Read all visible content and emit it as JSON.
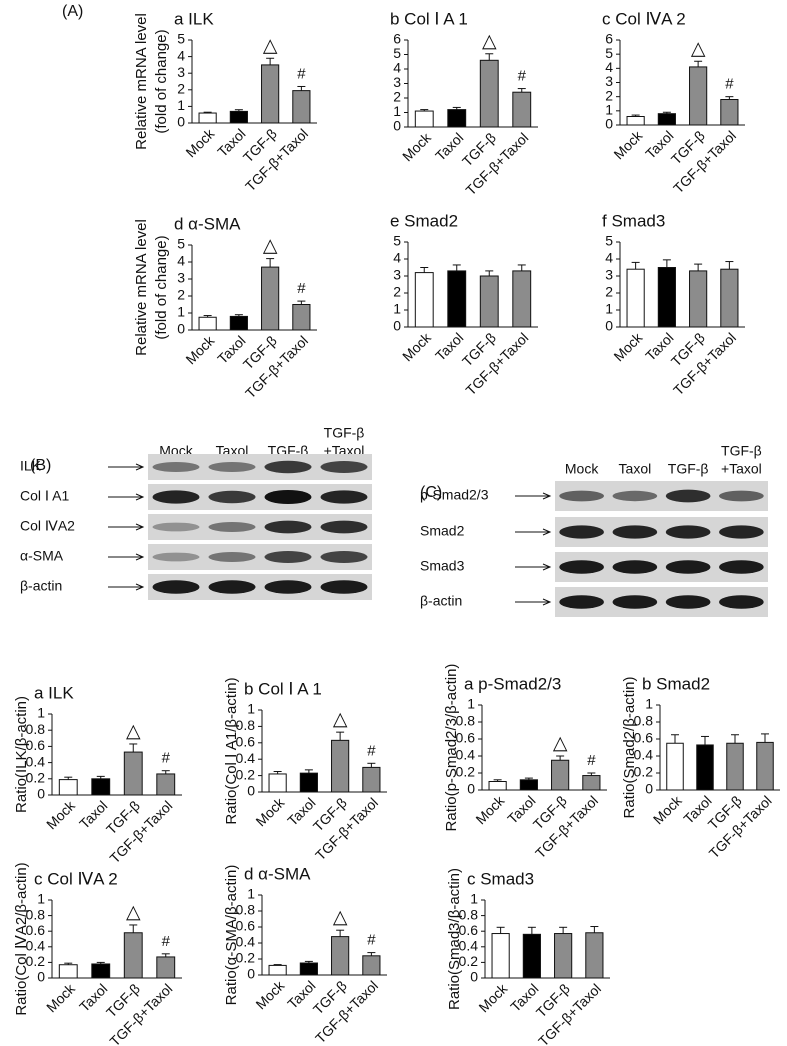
{
  "panels": {
    "A": "(A)",
    "B": "(B)",
    "C": "(C)"
  },
  "blots": [
    {
      "columns": [
        [
          "Mock"
        ],
        [
          "Taxol"
        ],
        [
          "TGF-β"
        ],
        [
          "TGF-β",
          "+Taxol"
        ]
      ],
      "rows": [
        "ILK",
        "Col Ⅰ A1",
        "Col ⅣA2",
        "α-SMA",
        "β-actin"
      ]
    },
    {
      "columns": [
        [
          "Mock"
        ],
        [
          "Taxol"
        ],
        [
          "TGF-β"
        ],
        [
          "TGF-β",
          "+Taxol"
        ]
      ],
      "rows": [
        "p-Smad2/3",
        "Smad2",
        "Smad3",
        "β-actin"
      ]
    }
  ],
  "chart_data": [
    {
      "type": "bar",
      "title": "a ILK",
      "ylabel": [
        "Relative mRNA level",
        "(fold of change)"
      ],
      "categories": [
        "Mock",
        "Taxol",
        "TGF-β",
        "TGF-β+Taxol"
      ],
      "values": [
        0.6,
        0.7,
        3.5,
        1.95
      ],
      "errors": [
        0.05,
        0.1,
        0.4,
        0.25
      ],
      "colors": [
        "#ffffff",
        "#000000",
        "#8c8c8c",
        "#8c8c8c"
      ],
      "markers": [
        {
          "index": 2,
          "text": "△"
        },
        {
          "index": 3,
          "text": "#"
        }
      ],
      "ylim": [
        0,
        5
      ],
      "yticks": [
        0,
        1,
        2,
        3,
        4,
        5
      ]
    },
    {
      "type": "bar",
      "title": "b Col Ⅰ A 1",
      "categories": [
        "Mock",
        "Taxol",
        "TGF-β",
        "TGF-β+Taxol"
      ],
      "values": [
        1.1,
        1.2,
        4.6,
        2.4
      ],
      "errors": [
        0.1,
        0.15,
        0.45,
        0.25
      ],
      "colors": [
        "#ffffff",
        "#000000",
        "#8c8c8c",
        "#8c8c8c"
      ],
      "markers": [
        {
          "index": 2,
          "text": "△"
        },
        {
          "index": 3,
          "text": "#"
        }
      ],
      "ylim": [
        0,
        6
      ],
      "yticks": [
        0,
        1,
        2,
        3,
        4,
        5,
        6
      ]
    },
    {
      "type": "bar",
      "title": "c Col ⅣA 2",
      "categories": [
        "Mock",
        "Taxol",
        "TGF-β",
        "TGF-β+Taxol"
      ],
      "values": [
        0.6,
        0.8,
        4.1,
        1.8
      ],
      "errors": [
        0.1,
        0.1,
        0.4,
        0.2
      ],
      "colors": [
        "#ffffff",
        "#000000",
        "#8c8c8c",
        "#8c8c8c"
      ],
      "markers": [
        {
          "index": 2,
          "text": "△"
        },
        {
          "index": 3,
          "text": "#"
        }
      ],
      "ylim": [
        0,
        6
      ],
      "yticks": [
        0,
        1,
        2,
        3,
        4,
        5,
        6
      ]
    },
    {
      "type": "bar",
      "title": "d α-SMA",
      "ylabel": [
        "Relative mRNA level",
        "(fold of change)"
      ],
      "categories": [
        "Mock",
        "Taxol",
        "TGF-β",
        "TGF-β+Taxol"
      ],
      "values": [
        0.75,
        0.8,
        3.7,
        1.5
      ],
      "errors": [
        0.1,
        0.1,
        0.5,
        0.2
      ],
      "colors": [
        "#ffffff",
        "#000000",
        "#8c8c8c",
        "#8c8c8c"
      ],
      "markers": [
        {
          "index": 2,
          "text": "△"
        },
        {
          "index": 3,
          "text": "#"
        }
      ],
      "ylim": [
        0,
        5
      ],
      "yticks": [
        0,
        1,
        2,
        3,
        4,
        5
      ]
    },
    {
      "type": "bar",
      "title": "e Smad2",
      "categories": [
        "Mock",
        "Taxol",
        "TGF-β",
        "TGF-β+Taxol"
      ],
      "values": [
        3.2,
        3.3,
        3.0,
        3.3
      ],
      "errors": [
        0.3,
        0.35,
        0.3,
        0.35
      ],
      "colors": [
        "#ffffff",
        "#000000",
        "#8c8c8c",
        "#8c8c8c"
      ],
      "ylim": [
        0,
        5
      ],
      "yticks": [
        0,
        1,
        2,
        3,
        4,
        5
      ]
    },
    {
      "type": "bar",
      "title": "f Smad3",
      "categories": [
        "Mock",
        "Taxol",
        "TGF-β",
        "TGF-β+Taxol"
      ],
      "values": [
        3.4,
        3.5,
        3.3,
        3.4
      ],
      "errors": [
        0.4,
        0.45,
        0.4,
        0.45
      ],
      "colors": [
        "#ffffff",
        "#000000",
        "#8c8c8c",
        "#8c8c8c"
      ],
      "ylim": [
        0,
        5
      ],
      "yticks": [
        0,
        1,
        2,
        3,
        4,
        5
      ]
    },
    {
      "type": "bar",
      "title": "a ILK",
      "ylabel": [
        "Ratio(ILK/β-actin)"
      ],
      "categories": [
        "Mock",
        "Taxol",
        "TGF-β",
        "TGF-β+Taxol"
      ],
      "values": [
        0.19,
        0.2,
        0.53,
        0.26
      ],
      "errors": [
        0.03,
        0.03,
        0.1,
        0.04
      ],
      "colors": [
        "#ffffff",
        "#000000",
        "#8c8c8c",
        "#8c8c8c"
      ],
      "markers": [
        {
          "index": 2,
          "text": "△"
        },
        {
          "index": 3,
          "text": "#"
        }
      ],
      "ylim": [
        0,
        1
      ],
      "yticks": [
        0,
        0.2,
        0.4,
        0.6,
        0.8,
        1
      ]
    },
    {
      "type": "bar",
      "title": "b Col Ⅰ A 1",
      "ylabel": [
        "Ratio(Col Ⅰ A1/β-actin)"
      ],
      "categories": [
        "Mock",
        "Taxol",
        "TGF-β",
        "TGF-β+Taxol"
      ],
      "values": [
        0.22,
        0.23,
        0.63,
        0.3
      ],
      "errors": [
        0.03,
        0.04,
        0.1,
        0.05
      ],
      "colors": [
        "#ffffff",
        "#000000",
        "#8c8c8c",
        "#8c8c8c"
      ],
      "markers": [
        {
          "index": 2,
          "text": "△"
        },
        {
          "index": 3,
          "text": "#"
        }
      ],
      "ylim": [
        0,
        1
      ],
      "yticks": [
        0,
        0.2,
        0.4,
        0.6,
        0.8,
        1
      ]
    },
    {
      "type": "bar",
      "title": "a p-Smad2/3",
      "ylabel": [
        "Ratio(p-Smad2/3/β-actin)"
      ],
      "categories": [
        "Mock",
        "Taxol",
        "TGF-β",
        "TGF-β+Taxol"
      ],
      "values": [
        0.1,
        0.12,
        0.35,
        0.17
      ],
      "errors": [
        0.02,
        0.02,
        0.05,
        0.03
      ],
      "colors": [
        "#ffffff",
        "#000000",
        "#8c8c8c",
        "#8c8c8c"
      ],
      "markers": [
        {
          "index": 2,
          "text": "△"
        },
        {
          "index": 3,
          "text": "#"
        }
      ],
      "ylim": [
        0,
        1
      ],
      "yticks": [
        0,
        0.2,
        0.4,
        0.6,
        0.8,
        1
      ]
    },
    {
      "type": "bar",
      "title": "b Smad2",
      "ylabel": [
        "Ratio(Smad2/β-actin)"
      ],
      "categories": [
        "Mock",
        "Taxol",
        "TGF-β",
        "TGF-β+Taxol"
      ],
      "values": [
        0.55,
        0.53,
        0.55,
        0.56
      ],
      "errors": [
        0.1,
        0.1,
        0.1,
        0.1
      ],
      "colors": [
        "#ffffff",
        "#000000",
        "#8c8c8c",
        "#8c8c8c"
      ],
      "ylim": [
        0,
        1
      ],
      "yticks": [
        0,
        0.2,
        0.4,
        0.6,
        0.8,
        1
      ]
    },
    {
      "type": "bar",
      "title": "c Col ⅣA 2",
      "ylabel": [
        "Ratio(Col ⅣA2/β-actin)"
      ],
      "categories": [
        "Mock",
        "Taxol",
        "TGF-β",
        "TGF-β+Taxol"
      ],
      "values": [
        0.17,
        0.18,
        0.58,
        0.27
      ],
      "errors": [
        0.02,
        0.02,
        0.1,
        0.04
      ],
      "colors": [
        "#ffffff",
        "#000000",
        "#8c8c8c",
        "#8c8c8c"
      ],
      "markers": [
        {
          "index": 2,
          "text": "△"
        },
        {
          "index": 3,
          "text": "#"
        }
      ],
      "ylim": [
        0,
        1
      ],
      "yticks": [
        0,
        0.2,
        0.4,
        0.6,
        0.8,
        1
      ]
    },
    {
      "type": "bar",
      "title": "d α-SMA",
      "ylabel": [
        "Ratio(α-SMA/β-actin)"
      ],
      "categories": [
        "Mock",
        "Taxol",
        "TGF-β",
        "TGF-β+Taxol"
      ],
      "values": [
        0.12,
        0.15,
        0.48,
        0.24
      ],
      "errors": [
        0.01,
        0.02,
        0.08,
        0.04
      ],
      "colors": [
        "#ffffff",
        "#000000",
        "#8c8c8c",
        "#8c8c8c"
      ],
      "markers": [
        {
          "index": 2,
          "text": "△"
        },
        {
          "index": 3,
          "text": "#"
        }
      ],
      "ylim": [
        0,
        1
      ],
      "yticks": [
        0,
        0.2,
        0.4,
        0.6,
        0.8,
        1
      ]
    },
    {
      "type": "bar",
      "title": "c Smad3",
      "ylabel": [
        "Ratio(Smad3/β-actin)"
      ],
      "categories": [
        "Mock",
        "Taxol",
        "TGF-β",
        "TGF-β+Taxol"
      ],
      "values": [
        0.57,
        0.56,
        0.57,
        0.58
      ],
      "errors": [
        0.08,
        0.09,
        0.08,
        0.08
      ],
      "colors": [
        "#ffffff",
        "#000000",
        "#8c8c8c",
        "#8c8c8c"
      ],
      "ylim": [
        0,
        1
      ],
      "yticks": [
        0,
        0.2,
        0.4,
        0.6,
        0.8,
        1
      ]
    }
  ]
}
